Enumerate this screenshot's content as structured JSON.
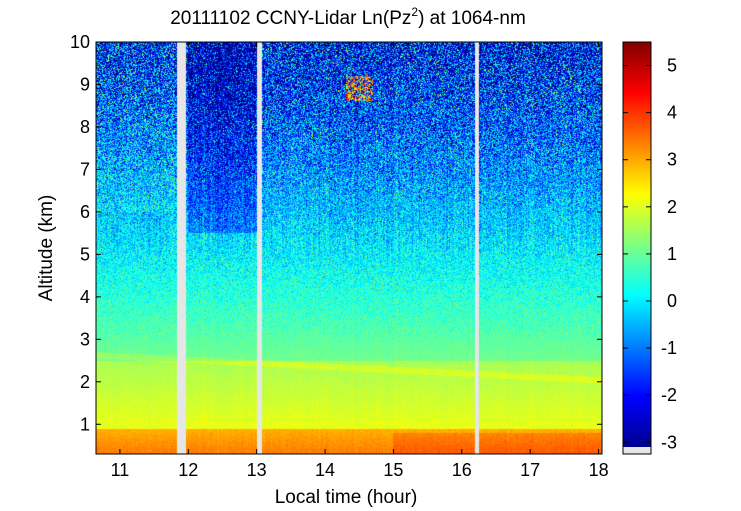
{
  "chart_data": {
    "type": "heatmap",
    "title": "20111102 CCNY-Lidar Ln(Pz²) at 1064-nm",
    "xlabel": "Local time (hour)",
    "ylabel": "Altitude (km)",
    "xlim": [
      10.65,
      18.05
    ],
    "ylim": [
      0.3,
      10
    ],
    "x_ticks": [
      11,
      12,
      13,
      14,
      15,
      16,
      17,
      18
    ],
    "y_ticks": [
      1,
      2,
      3,
      4,
      5,
      6,
      7,
      8,
      9,
      10
    ],
    "colorbar": {
      "colormap": "jet",
      "range": [
        -3.1,
        5.5
      ],
      "ticks": [
        -3,
        -2,
        -1,
        0,
        1,
        2,
        3,
        4,
        5
      ],
      "no_data_color": "#e6e6e6"
    },
    "data_gaps": [
      [
        11.83,
        11.97
      ],
      [
        13.0,
        13.08
      ],
      [
        16.2,
        16.25
      ]
    ],
    "layers": [
      {
        "name": "surface layer",
        "altitude_range_km": [
          0.3,
          0.9
        ],
        "approx_value": 3.5
      },
      {
        "name": "boundary layer",
        "altitude_range_km": [
          0.9,
          2.5
        ],
        "approx_value": 2.0
      },
      {
        "name": "free troposphere",
        "altitude_range_km": [
          2.5,
          7
        ],
        "approx_value": 0.5
      },
      {
        "name": "upper noise region",
        "altitude_range_km": [
          7,
          10
        ],
        "approx_value": -1.5
      }
    ],
    "features": [
      {
        "name": "cloud",
        "time_range": [
          14.3,
          14.7
        ],
        "altitude_range_km": [
          8.6,
          9.2
        ],
        "approx_value": 4.5
      }
    ]
  }
}
